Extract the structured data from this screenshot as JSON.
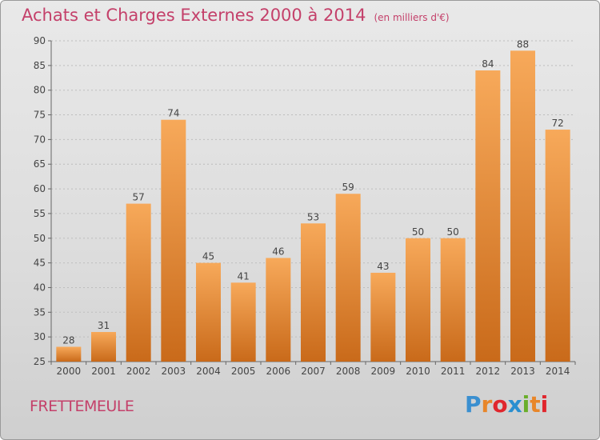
{
  "header": {
    "title": "Achats et Charges Externes 2000 à 2014",
    "subtitle": "(en milliers d'€)"
  },
  "footer": {
    "place_name": "FRETTEMEULE"
  },
  "logo": {
    "letters": [
      "P",
      "r",
      "o",
      "x",
      "i",
      "t",
      "i"
    ],
    "colors": [
      "#3a8fd0",
      "#e8862a",
      "#e0262d",
      "#2a8fd0",
      "#6aae2a",
      "#e8862a",
      "#e0262d"
    ]
  },
  "chart_data": {
    "type": "bar",
    "categories": [
      "2000",
      "2001",
      "2002",
      "2003",
      "2004",
      "2005",
      "2006",
      "2007",
      "2008",
      "2009",
      "2010",
      "2011",
      "2012",
      "2013",
      "2014"
    ],
    "values": [
      28,
      31,
      57,
      74,
      45,
      41,
      46,
      53,
      59,
      43,
      50,
      50,
      84,
      88,
      72
    ],
    "ylim": [
      25,
      90
    ],
    "yticks": [
      25,
      30,
      35,
      40,
      45,
      50,
      55,
      60,
      65,
      70,
      75,
      80,
      85,
      90
    ],
    "grid": true,
    "bar_color_top": "#f7a95a",
    "bar_color_bottom": "#c96a1a"
  }
}
